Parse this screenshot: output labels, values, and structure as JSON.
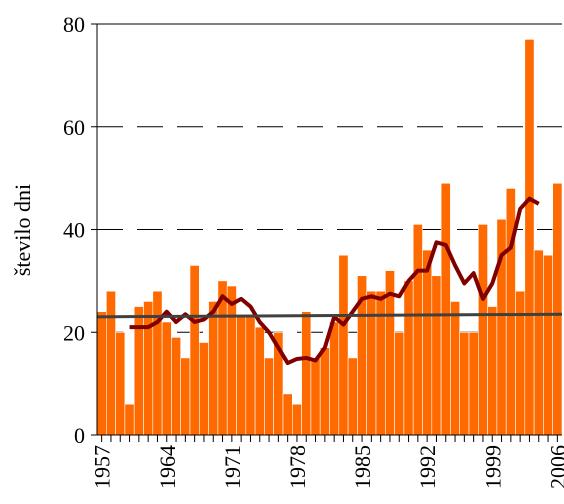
{
  "chart_data": {
    "type": "bar",
    "ylabel": "število dni",
    "categories": [
      "1957",
      null,
      null,
      null,
      null,
      null,
      null,
      "1964",
      null,
      null,
      null,
      null,
      null,
      null,
      "1971",
      null,
      null,
      null,
      null,
      null,
      null,
      "1978",
      null,
      null,
      null,
      null,
      null,
      null,
      "1985",
      null,
      null,
      null,
      null,
      null,
      null,
      "1992",
      null,
      null,
      null,
      null,
      null,
      null,
      "1999",
      null,
      null,
      null,
      null,
      null,
      null,
      "2006"
    ],
    "series": [
      {
        "color": "#ff6a00",
        "values": [
          24,
          28,
          20,
          6,
          25,
          26,
          28,
          22,
          19,
          15,
          33,
          18,
          26,
          30,
          29,
          23,
          23,
          21,
          15,
          20,
          8,
          6,
          24,
          15,
          17,
          22,
          35,
          15,
          31,
          28,
          28,
          32,
          20,
          30,
          41,
          36,
          31,
          49,
          26,
          20,
          20,
          41,
          25,
          42,
          48,
          28,
          77,
          36,
          35,
          49
        ]
      },
      {
        "type": "line",
        "color": "#800000",
        "values": [
          null,
          null,
          null,
          21,
          21,
          21,
          22,
          24,
          22,
          23.5,
          22,
          22.5,
          24,
          27,
          25.5,
          26.5,
          25,
          22,
          20,
          17,
          14,
          14.8,
          15,
          14.5,
          17,
          23,
          21.5,
          24,
          26.5,
          27,
          26.5,
          27.5,
          27,
          30,
          32,
          32,
          37.5,
          37,
          33,
          29.5,
          31.5,
          26.5,
          29.5,
          35,
          36.5,
          44,
          46,
          45,
          null,
          null
        ]
      }
    ],
    "trend": {
      "color": "#404040",
      "values": [
        23,
        23.5
      ]
    },
    "ylim": [
      0,
      80
    ],
    "yticks": [
      0,
      20,
      40,
      60,
      80
    ],
    "grid": true
  }
}
